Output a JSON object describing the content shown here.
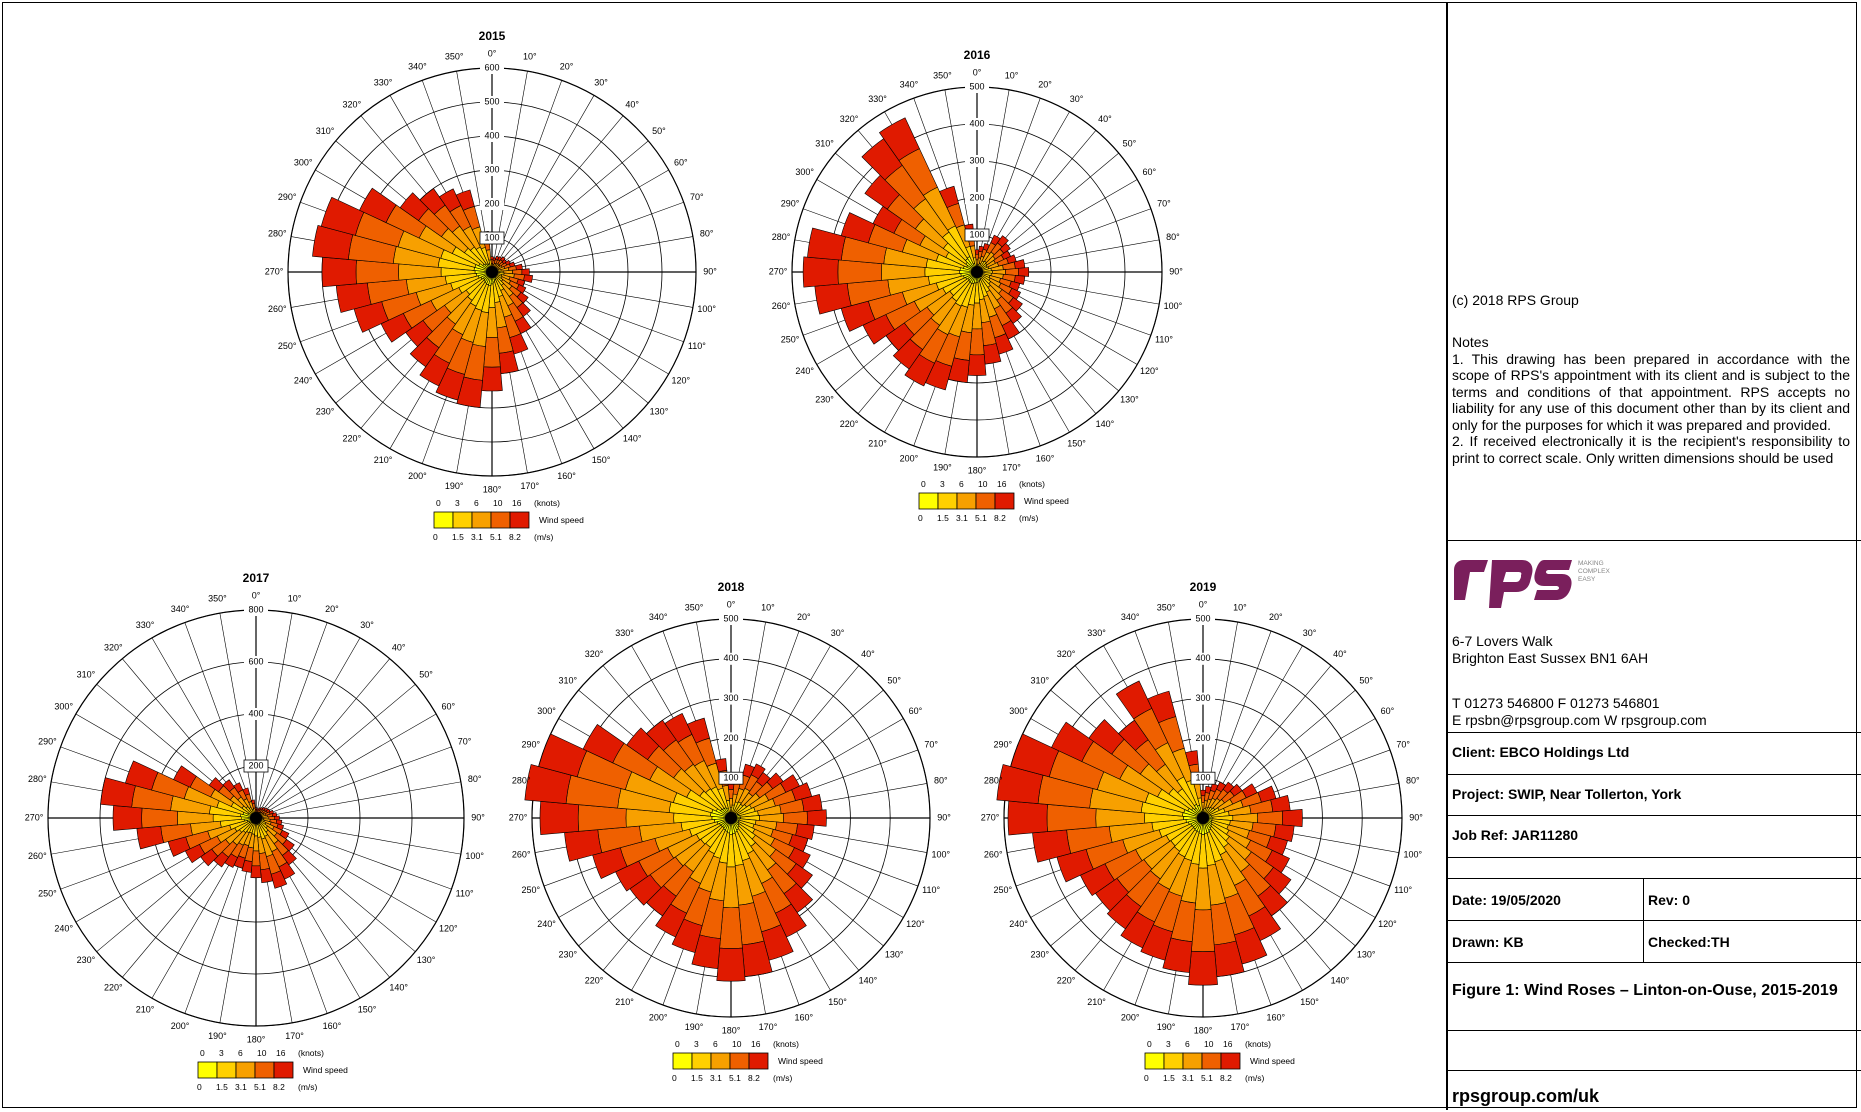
{
  "chart_data": [
    {
      "type": "windrose",
      "title": "2015",
      "ring_values": [
        100,
        200,
        300,
        400,
        500,
        600
      ],
      "totals": [
        45,
        42,
        48,
        50,
        55,
        52,
        60,
        70,
        90,
        110,
        120,
        100,
        110,
        130,
        160,
        200,
        250,
        300,
        350,
        400,
        390,
        370,
        340,
        310,
        360,
        420,
        460,
        500,
        530,
        520,
        430,
        330,
        300,
        270,
        250,
        120
      ]
    },
    {
      "type": "windrose",
      "title": "2016",
      "ring_values": [
        100,
        200,
        300,
        400,
        500
      ],
      "totals": [
        60,
        70,
        80,
        110,
        120,
        110,
        100,
        110,
        130,
        140,
        130,
        120,
        130,
        150,
        170,
        200,
        230,
        250,
        280,
        300,
        330,
        340,
        320,
        300,
        340,
        380,
        440,
        470,
        460,
        380,
        310,
        370,
        440,
        460,
        240,
        130
      ]
    },
    {
      "type": "windrose",
      "title": "2017",
      "ring_values": [
        200,
        400,
        600,
        800
      ],
      "totals": [
        40,
        35,
        40,
        45,
        50,
        55,
        60,
        70,
        80,
        90,
        100,
        110,
        140,
        180,
        220,
        260,
        280,
        250,
        230,
        210,
        200,
        210,
        230,
        260,
        300,
        350,
        460,
        550,
        600,
        520,
        350,
        220,
        180,
        150,
        120,
        70
      ]
    },
    {
      "type": "windrose",
      "title": "2018",
      "ring_values": [
        100,
        200,
        300,
        400,
        500
      ],
      "totals": [
        90,
        110,
        140,
        150,
        140,
        160,
        190,
        210,
        230,
        240,
        210,
        200,
        220,
        250,
        290,
        330,
        370,
        400,
        410,
        380,
        350,
        330,
        300,
        310,
        320,
        360,
        420,
        480,
        520,
        500,
        410,
        320,
        300,
        290,
        260,
        150
      ]
    },
    {
      "type": "windrose",
      "title": "2019",
      "ring_values": [
        100,
        200,
        300,
        400,
        500
      ],
      "totals": [
        70,
        80,
        90,
        100,
        110,
        120,
        150,
        190,
        220,
        250,
        230,
        220,
        240,
        270,
        300,
        340,
        380,
        400,
        420,
        390,
        370,
        360,
        340,
        330,
        340,
        380,
        430,
        490,
        520,
        500,
        420,
        350,
        300,
        380,
        330,
        170
      ]
    }
  ],
  "common": {
    "angle_labels": [
      "0°",
      "10°",
      "20°",
      "30°",
      "40°",
      "50°",
      "60°",
      "70°",
      "80°",
      "90°",
      "100°",
      "110°",
      "120°",
      "130°",
      "140°",
      "150°",
      "160°",
      "170°",
      "180°",
      "190°",
      "200°",
      "210°",
      "220°",
      "230°",
      "240°",
      "250°",
      "260°",
      "270°",
      "280°",
      "290°",
      "300°",
      "310°",
      "320°",
      "330°",
      "340°",
      "350°"
    ],
    "speed_classes_knots": [
      "0",
      "3",
      "6",
      "10",
      "16"
    ],
    "speed_classes_ms": [
      "0",
      "1.5",
      "3.1",
      "5.1",
      "8.2"
    ],
    "knots_unit": "(knots)",
    "ms_unit": "(m/s)",
    "legend_title": "Wind speed",
    "colors": [
      "#ffff00",
      "#ffd000",
      "#f7a000",
      "#ef6000",
      "#e01a00"
    ],
    "fractions": [
      0.1,
      0.2,
      0.25,
      0.25,
      0.2
    ]
  },
  "panel": {
    "copyright": "(c) 2018 RPS Group",
    "notes_heading": "Notes",
    "note1": "1. This drawing has been prepared in accordance with the scope of RPS's appointment with its client and is subject to the terms and conditions of that appointment. RPS accepts no liability for any use of this document other than by its client and only for the purposes for which it was prepared and provided.",
    "note2": "2. If received electronically it is the recipient's responsibility to print to correct scale. Only written dimensions should be used",
    "logo_text": "rps",
    "logo_tagline_1": "MAKING",
    "logo_tagline_2": "COMPLEX",
    "logo_tagline_3": "EASY",
    "logo_color": "#7a1f5c",
    "address_1": "6-7 Lovers Walk",
    "address_2": "Brighton East Sussex BN1 6AH",
    "phone": "T 01273 546800 F 01273 546801",
    "email_web": "E rpsbn@rpsgroup.com W rpsgroup.com",
    "client": "Client: EBCO Holdings Ltd",
    "project": "Project: SWIP, Near Tollerton, York",
    "job_ref": "Job Ref: JAR11280",
    "date": "Date: 19/05/2020",
    "rev": "Rev: 0",
    "drawn": "Drawn: KB",
    "checked": "Checked:TH",
    "figure_title": "Figure 1: Wind Roses – Linton-on-Ouse, 2015-2019",
    "website": "rpsgroup.com/uk"
  }
}
